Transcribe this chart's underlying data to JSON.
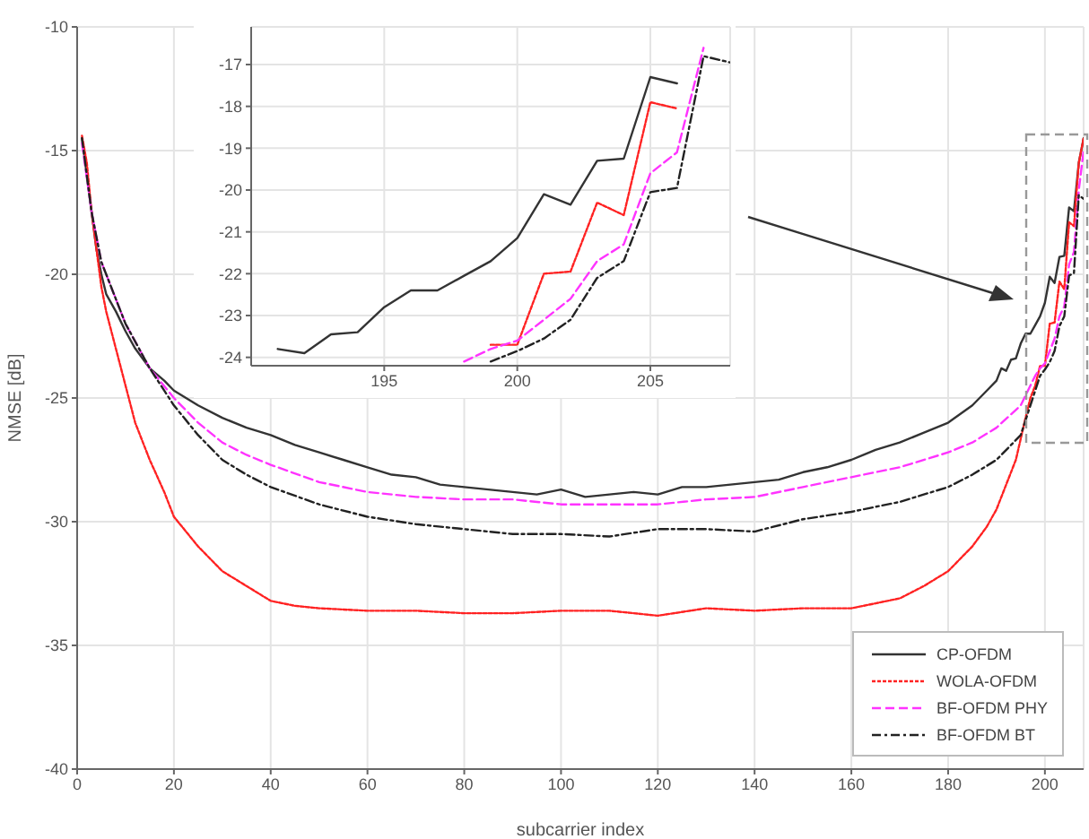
{
  "chart_data": [
    {
      "type": "line",
      "xlabel": "subcarrier index",
      "ylabel": "NMSE [dB]",
      "xlim": [
        0,
        208
      ],
      "ylim": [
        -40,
        -10
      ],
      "xticks": [
        0,
        20,
        40,
        60,
        80,
        100,
        120,
        140,
        160,
        180,
        200
      ],
      "yticks": [
        -40,
        -35,
        -30,
        -25,
        -20,
        -15,
        -10
      ],
      "grid": true,
      "legend": "bottom right",
      "marker": "none",
      "series": [
        {
          "name": "CP-OFDM",
          "color": "#333333",
          "line_style": "solid",
          "x": [
            1,
            2,
            3,
            4,
            5,
            6,
            8,
            10,
            12,
            15,
            18,
            20,
            25,
            30,
            35,
            40,
            45,
            50,
            55,
            60,
            65,
            70,
            75,
            80,
            85,
            90,
            95,
            100,
            105,
            110,
            115,
            120,
            125,
            130,
            135,
            140,
            145,
            150,
            155,
            160,
            165,
            170,
            175,
            180,
            185,
            188,
            190,
            191,
            192,
            193,
            194,
            195,
            196,
            197,
            198,
            199,
            200,
            201,
            202,
            203,
            204,
            205,
            206,
            207,
            208
          ],
          "values": [
            -14.5,
            -16,
            -17.5,
            -19,
            -20,
            -20.8,
            -21.5,
            -22.3,
            -23,
            -23.8,
            -24.3,
            -24.7,
            -25.3,
            -25.8,
            -26.2,
            -26.5,
            -26.9,
            -27.2,
            -27.5,
            -27.8,
            -28.1,
            -28.2,
            -28.5,
            -28.6,
            -28.7,
            -28.8,
            -28.9,
            -28.7,
            -29,
            -28.9,
            -28.8,
            -28.9,
            -28.6,
            -28.6,
            -28.5,
            -28.4,
            -28.3,
            -28,
            -27.8,
            -27.5,
            -27.1,
            -26.8,
            -26.4,
            -26,
            -25.3,
            -24.7,
            -24.3,
            -23.8,
            -23.9,
            -23.45,
            -23.4,
            -22.8,
            -22.4,
            -22.4,
            -22.05,
            -21.7,
            -21.15,
            -20.1,
            -20.35,
            -19.3,
            -19.25,
            -17.3,
            -17.45,
            -15.5,
            -14.5
          ]
        },
        {
          "name": "WOLA-OFDM",
          "color": "#ff2222",
          "line_style": "dotted",
          "x": [
            1,
            2,
            3,
            4,
            5,
            6,
            8,
            10,
            12,
            15,
            18,
            20,
            25,
            30,
            35,
            40,
            45,
            50,
            60,
            70,
            80,
            90,
            100,
            110,
            120,
            130,
            140,
            150,
            160,
            165,
            170,
            175,
            180,
            185,
            188,
            190,
            192,
            194,
            196,
            197,
            198,
            199,
            200,
            201,
            202,
            203,
            204,
            205,
            206,
            207,
            208
          ],
          "values": [
            -14.4,
            -15.5,
            -17.5,
            -19,
            -20.5,
            -21.5,
            -23,
            -24.5,
            -26,
            -27.5,
            -28.8,
            -29.8,
            -31,
            -32,
            -32.6,
            -33.2,
            -33.4,
            -33.5,
            -33.6,
            -33.6,
            -33.7,
            -33.7,
            -33.6,
            -33.6,
            -33.8,
            -33.5,
            -33.6,
            -33.5,
            -33.5,
            -33.3,
            -33.1,
            -32.6,
            -32,
            -31,
            -30.2,
            -29.5,
            -28.5,
            -27.5,
            -25.8,
            -25,
            -24.5,
            -23.7,
            -23.7,
            -22,
            -21.95,
            -20.3,
            -20.6,
            -17.9,
            -18.05,
            -15.5,
            -14.5
          ]
        },
        {
          "name": "BF-OFDM PHY",
          "color": "#ff33ff",
          "line_style": "dashed",
          "x": [
            1,
            3,
            5,
            8,
            10,
            15,
            20,
            25,
            30,
            35,
            40,
            50,
            60,
            70,
            80,
            90,
            100,
            110,
            120,
            130,
            140,
            150,
            160,
            170,
            180,
            185,
            190,
            195,
            198,
            199,
            200,
            201,
            202,
            203,
            204,
            205,
            206,
            207,
            208
          ],
          "values": [
            -14.7,
            -17.5,
            -19.5,
            -21,
            -22,
            -23.8,
            -25,
            -26,
            -26.8,
            -27.3,
            -27.7,
            -28.4,
            -28.8,
            -29,
            -29.1,
            -29.1,
            -29.3,
            -29.3,
            -29.3,
            -29.1,
            -29,
            -28.6,
            -28.2,
            -27.8,
            -27.2,
            -26.8,
            -26.2,
            -25.3,
            -24.1,
            -23.8,
            -23.6,
            -23.1,
            -22.6,
            -21.7,
            -21.3,
            -19.6,
            -19.1,
            -16.6,
            -15
          ]
        },
        {
          "name": "BF-OFDM BT",
          "color": "#222222",
          "line_style": "dashdot",
          "x": [
            1,
            3,
            5,
            8,
            10,
            15,
            20,
            25,
            30,
            35,
            40,
            50,
            60,
            70,
            80,
            90,
            100,
            110,
            120,
            130,
            140,
            150,
            160,
            170,
            180,
            185,
            190,
            195,
            199,
            200,
            201,
            202,
            203,
            204,
            205,
            206,
            207,
            208
          ],
          "values": [
            -14.5,
            -17.5,
            -19.5,
            -21,
            -22,
            -23.8,
            -25.3,
            -26.5,
            -27.5,
            -28.1,
            -28.6,
            -29.3,
            -29.8,
            -30.1,
            -30.3,
            -30.5,
            -30.5,
            -30.6,
            -30.3,
            -30.3,
            -30.4,
            -29.9,
            -29.6,
            -29.2,
            -28.6,
            -28.1,
            -27.5,
            -26.5,
            -24.1,
            -23.85,
            -23.55,
            -23.1,
            -22.1,
            -21.7,
            -20.05,
            -19.95,
            -16.8,
            -16.95
          ]
        }
      ]
    },
    {
      "type": "line",
      "xlim": [
        190,
        208
      ],
      "ylim": [
        -24.2,
        -16.1
      ],
      "xticks": [
        195,
        200,
        205
      ],
      "yticks": [
        -24,
        -23,
        -22,
        -21,
        -20,
        -19,
        -18,
        -17
      ],
      "grid": true,
      "marker": "none",
      "series": [
        {
          "color": "#333333",
          "line_style": "solid",
          "x": [
            191,
            192,
            193,
            194,
            195,
            196,
            197,
            198,
            199,
            200,
            201,
            202,
            203,
            204,
            205,
            206
          ],
          "values": [
            -23.8,
            -23.9,
            -23.45,
            -23.4,
            -22.8,
            -22.4,
            -22.4,
            -22.05,
            -21.7,
            -21.15,
            -20.1,
            -20.35,
            -19.3,
            -19.25,
            -17.3,
            -17.45
          ]
        },
        {
          "color": "#ff2222",
          "line_style": "dotted",
          "x": [
            199,
            200,
            201,
            202,
            203,
            204,
            205,
            206
          ],
          "values": [
            -23.7,
            -23.7,
            -22,
            -21.95,
            -20.3,
            -20.6,
            -17.9,
            -18.05
          ]
        },
        {
          "color": "#ff33ff",
          "line_style": "dashed",
          "x": [
            198,
            199,
            200,
            201,
            202,
            203,
            204,
            205,
            206,
            207
          ],
          "values": [
            -24.1,
            -23.8,
            -23.6,
            -23.1,
            -22.6,
            -21.7,
            -21.3,
            -19.6,
            -19.1,
            -16.6
          ]
        },
        {
          "color": "#222222",
          "line_style": "dashdot",
          "x": [
            199,
            200,
            201,
            202,
            203,
            204,
            205,
            206,
            207,
            208
          ],
          "values": [
            -24.1,
            -23.85,
            -23.55,
            -23.1,
            -22.1,
            -21.7,
            -20.05,
            -19.95,
            -16.8,
            -16.95
          ]
        }
      ]
    }
  ]
}
